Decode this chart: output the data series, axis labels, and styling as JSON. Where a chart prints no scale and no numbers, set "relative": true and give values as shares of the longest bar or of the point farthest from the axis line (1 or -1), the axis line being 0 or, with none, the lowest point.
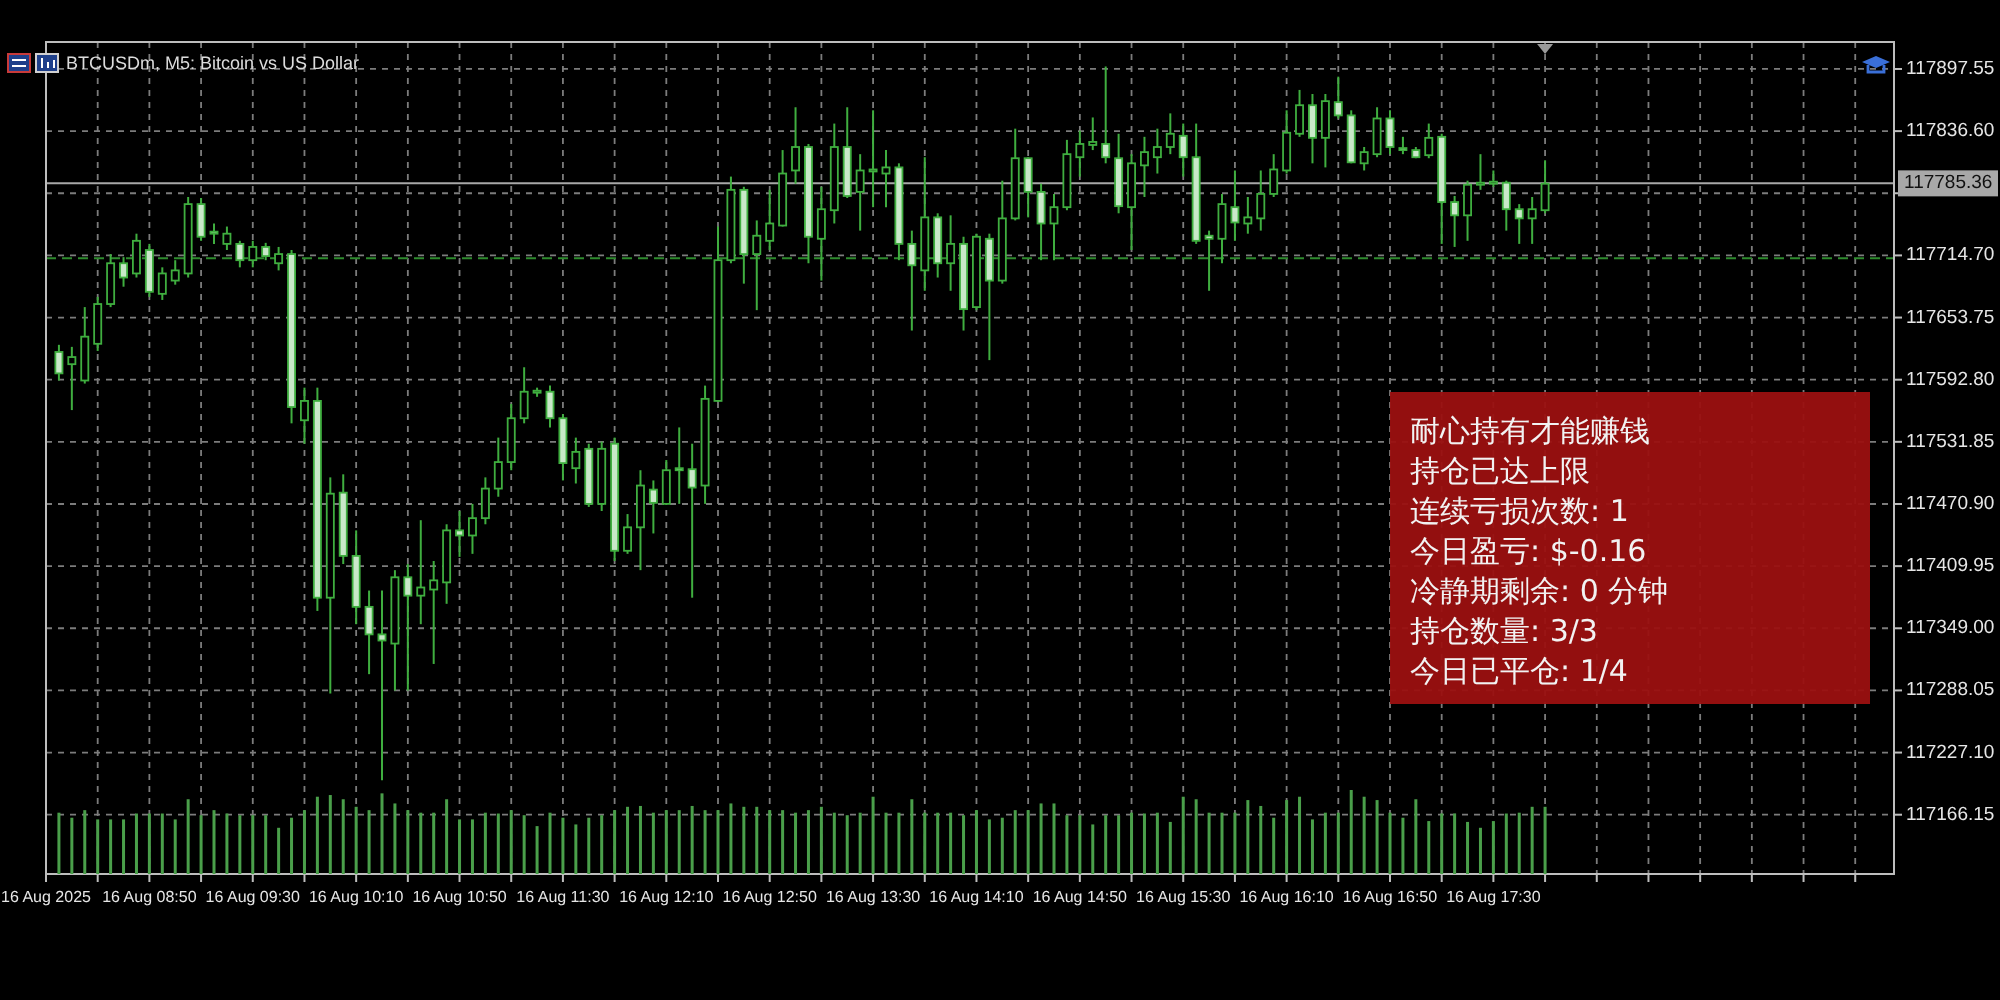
{
  "chart_data": [
    {
      "type": "candlestick",
      "title": "BTCUSDm, M5: Bitcoin vs US Dollar",
      "color": "#3fae3f",
      "x": [
        "2025-08-16T08:15",
        "2025-08-16T08:20",
        "2025-08-16T08:25",
        "2025-08-16T08:30",
        "2025-08-16T08:35",
        "2025-08-16T08:40",
        "2025-08-16T08:45",
        "2025-08-16T08:50",
        "2025-08-16T08:55",
        "2025-08-16T09:00",
        "2025-08-16T09:05",
        "2025-08-16T09:10",
        "2025-08-16T09:15",
        "2025-08-16T09:20",
        "2025-08-16T09:25",
        "2025-08-16T09:30",
        "2025-08-16T09:35",
        "2025-08-16T09:40",
        "2025-08-16T09:45",
        "2025-08-16T09:50",
        "2025-08-16T09:55",
        "2025-08-16T10:00",
        "2025-08-16T10:05",
        "2025-08-16T10:10",
        "2025-08-16T10:15",
        "2025-08-16T10:20",
        "2025-08-16T10:25",
        "2025-08-16T10:30",
        "2025-08-16T10:35",
        "2025-08-16T10:40",
        "2025-08-16T10:45",
        "2025-08-16T10:50",
        "2025-08-16T10:55",
        "2025-08-16T11:00",
        "2025-08-16T11:05",
        "2025-08-16T11:10",
        "2025-08-16T11:15",
        "2025-08-16T11:20",
        "2025-08-16T11:25",
        "2025-08-16T11:30",
        "2025-08-16T11:35",
        "2025-08-16T11:40",
        "2025-08-16T11:45",
        "2025-08-16T11:50",
        "2025-08-16T11:55",
        "2025-08-16T12:00",
        "2025-08-16T12:05",
        "2025-08-16T12:10",
        "2025-08-16T12:15",
        "2025-08-16T12:20",
        "2025-08-16T12:25",
        "2025-08-16T12:30",
        "2025-08-16T12:35",
        "2025-08-16T12:40",
        "2025-08-16T12:45",
        "2025-08-16T12:50",
        "2025-08-16T12:55",
        "2025-08-16T13:00",
        "2025-08-16T13:05",
        "2025-08-16T13:10",
        "2025-08-16T13:15",
        "2025-08-16T13:20",
        "2025-08-16T13:25",
        "2025-08-16T13:30",
        "2025-08-16T13:35",
        "2025-08-16T13:40",
        "2025-08-16T13:45",
        "2025-08-16T13:50",
        "2025-08-16T13:55",
        "2025-08-16T14:00",
        "2025-08-16T14:05",
        "2025-08-16T14:10",
        "2025-08-16T14:15",
        "2025-08-16T14:20",
        "2025-08-16T14:25",
        "2025-08-16T14:30",
        "2025-08-16T14:35",
        "2025-08-16T14:40",
        "2025-08-16T14:45",
        "2025-08-16T14:50",
        "2025-08-16T14:55",
        "2025-08-16T15:00",
        "2025-08-16T15:05",
        "2025-08-16T15:10",
        "2025-08-16T15:15",
        "2025-08-16T15:20",
        "2025-08-16T15:25",
        "2025-08-16T15:30",
        "2025-08-16T15:35",
        "2025-08-16T15:40",
        "2025-08-16T15:45",
        "2025-08-16T15:50",
        "2025-08-16T15:55",
        "2025-08-16T16:00",
        "2025-08-16T16:05",
        "2025-08-16T16:10",
        "2025-08-16T16:15",
        "2025-08-16T16:20",
        "2025-08-16T16:25",
        "2025-08-16T16:30",
        "2025-08-16T16:35",
        "2025-08-16T16:40",
        "2025-08-16T16:45",
        "2025-08-16T16:50",
        "2025-08-16T16:55",
        "2025-08-16T17:00",
        "2025-08-16T17:05",
        "2025-08-16T17:10",
        "2025-08-16T17:15",
        "2025-08-16T17:20",
        "2025-08-16T17:25",
        "2025-08-16T17:30",
        "2025-08-16T17:35",
        "2025-08-16T17:40",
        "2025-08-16T17:45",
        "2025-08-16T17:50"
      ],
      "ohlc": [
        [
          117620,
          117627,
          117592,
          117599
        ],
        [
          117608,
          117625,
          117563,
          117615
        ],
        [
          117592,
          117664,
          117589,
          117635
        ],
        [
          117628,
          117674,
          117621,
          117667
        ],
        [
          117667,
          117716,
          117664,
          117707
        ],
        [
          117707,
          117713,
          117684,
          117693
        ],
        [
          117697,
          117736,
          117693,
          117729
        ],
        [
          117720,
          117726,
          117674,
          117679
        ],
        [
          117677,
          117703,
          117671,
          117697
        ],
        [
          117690,
          117710,
          117686,
          117700
        ],
        [
          117697,
          117772,
          117693,
          117765
        ],
        [
          117765,
          117771,
          117729,
          117733
        ],
        [
          117738,
          117746,
          117726,
          117736
        ],
        [
          117726,
          117743,
          117720,
          117736
        ],
        [
          117726,
          117729,
          117703,
          117710
        ],
        [
          117710,
          117729,
          117703,
          117723
        ],
        [
          117723,
          117727,
          117710,
          117714
        ],
        [
          117707,
          117723,
          117700,
          117716
        ],
        [
          117716,
          117720,
          117550,
          117566
        ],
        [
          117553,
          117585,
          117530,
          117572
        ],
        [
          117572,
          117585,
          117366,
          117379
        ],
        [
          117379,
          117497,
          117285,
          117481
        ],
        [
          117482,
          117500,
          117412,
          117420
        ],
        [
          117420,
          117445,
          117353,
          117370
        ],
        [
          117370,
          117386,
          117304,
          117343
        ],
        [
          117343,
          117386,
          117200,
          117337
        ],
        [
          117334,
          117406,
          117288,
          117399
        ],
        [
          117399,
          117412,
          117288,
          117381
        ],
        [
          117381,
          117455,
          117353,
          117389
        ],
        [
          117387,
          117415,
          117314,
          117396
        ],
        [
          117394,
          117451,
          117373,
          117445
        ],
        [
          117445,
          117464,
          117419,
          117440
        ],
        [
          117440,
          117471,
          117422,
          117457
        ],
        [
          117457,
          117497,
          117451,
          117486
        ],
        [
          117486,
          117536,
          117478,
          117512
        ],
        [
          117512,
          117569,
          117504,
          117555
        ],
        [
          117555,
          117605,
          117550,
          117581
        ],
        [
          117581,
          117585,
          117576,
          117582
        ],
        [
          117581,
          117587,
          117546,
          117555
        ],
        [
          117555,
          117559,
          117494,
          117511
        ],
        [
          117506,
          117536,
          117491,
          117522
        ],
        [
          117525,
          117530,
          117468,
          117471
        ],
        [
          117471,
          117532,
          117464,
          117525
        ],
        [
          117530,
          117536,
          117415,
          117425
        ],
        [
          117425,
          117461,
          117422,
          117448
        ],
        [
          117448,
          117504,
          117406,
          117489
        ],
        [
          117485,
          117494,
          117442,
          117472
        ],
        [
          117471,
          117514,
          117470,
          117504
        ],
        [
          117506,
          117546,
          117471,
          117504
        ],
        [
          117505,
          117530,
          117379,
          117487
        ],
        [
          117489,
          117587,
          117471,
          117574
        ],
        [
          117572,
          117743,
          117571,
          117710
        ],
        [
          117710,
          117792,
          117707,
          117779
        ],
        [
          117779,
          117782,
          117687,
          117716
        ],
        [
          117716,
          117749,
          117661,
          117734
        ],
        [
          117729,
          117779,
          117720,
          117746
        ],
        [
          117744,
          117818,
          117743,
          117795
        ],
        [
          117798,
          117860,
          117785,
          117821
        ],
        [
          117821,
          117824,
          117707,
          117733
        ],
        [
          117731,
          117782,
          117690,
          117760
        ],
        [
          117759,
          117844,
          117746,
          117821
        ],
        [
          117821,
          117860,
          117771,
          117773
        ],
        [
          117777,
          117814,
          117739,
          117798
        ],
        [
          117798,
          117857,
          117762,
          117799
        ],
        [
          117795,
          117818,
          117762,
          117801
        ],
        [
          117801,
          117805,
          117710,
          117726
        ],
        [
          117726,
          117739,
          117641,
          117705
        ],
        [
          117700,
          117811,
          117680,
          117752
        ],
        [
          117752,
          117756,
          117693,
          117707
        ],
        [
          117707,
          117754,
          117680,
          117726
        ],
        [
          117726,
          117733,
          117641,
          117662
        ],
        [
          117664,
          117736,
          117661,
          117733
        ],
        [
          117731,
          117736,
          117612,
          117690
        ],
        [
          117690,
          117788,
          117687,
          117751
        ],
        [
          117751,
          117839,
          117749,
          117810
        ],
        [
          117810,
          117811,
          117752,
          117777
        ],
        [
          117777,
          117785,
          117710,
          117746
        ],
        [
          117746,
          117775,
          117710,
          117762
        ],
        [
          117762,
          117828,
          117759,
          117814
        ],
        [
          117811,
          117837,
          117792,
          117824
        ],
        [
          117823,
          117850,
          117818,
          117826
        ],
        [
          117824,
          117900,
          117805,
          117811
        ],
        [
          117810,
          117834,
          117756,
          117763
        ],
        [
          117762,
          117814,
          117720,
          117805
        ],
        [
          117803,
          117831,
          117772,
          117816
        ],
        [
          117811,
          117839,
          117795,
          117821
        ],
        [
          117821,
          117854,
          117814,
          117834
        ],
        [
          117832,
          117844,
          117792,
          117811
        ],
        [
          117811,
          117844,
          117726,
          117729
        ],
        [
          117734,
          117739,
          117680,
          117731
        ],
        [
          117731,
          117775,
          117707,
          117765
        ],
        [
          117762,
          117798,
          117729,
          117747
        ],
        [
          117746,
          117772,
          117736,
          117752
        ],
        [
          117751,
          117798,
          117739,
          117775
        ],
        [
          117775,
          117814,
          117772,
          117799
        ],
        [
          117798,
          117857,
          117795,
          117835
        ],
        [
          117834,
          117877,
          117831,
          117862
        ],
        [
          117862,
          117873,
          117805,
          117830
        ],
        [
          117830,
          117873,
          117801,
          117866
        ],
        [
          117865,
          117890,
          117849,
          117852
        ],
        [
          117852,
          117857,
          117805,
          117806
        ],
        [
          117805,
          117821,
          117798,
          117816
        ],
        [
          117814,
          117860,
          117811,
          117849
        ],
        [
          117849,
          117857,
          117814,
          117821
        ],
        [
          117820,
          117831,
          117814,
          117818
        ],
        [
          117818,
          117821,
          117810,
          117811
        ],
        [
          117813,
          117844,
          117810,
          117830
        ],
        [
          117831,
          117834,
          117726,
          117767
        ],
        [
          117767,
          117773,
          117723,
          117754
        ],
        [
          117754,
          117788,
          117729,
          117784
        ],
        [
          117784,
          117814,
          117779,
          117786
        ],
        [
          117786,
          117798,
          117782,
          117787
        ],
        [
          117786,
          117788,
          117739,
          117760
        ],
        [
          117760,
          117765,
          117726,
          117751
        ],
        [
          117751,
          117772,
          117726,
          117760
        ],
        [
          117759,
          117808,
          117756,
          117785
        ]
      ],
      "xlim": [
        "2025-08-16T08:10",
        "2025-08-16T20:05"
      ],
      "xticks": [
        {
          "value": "2025-08-16T08:10",
          "label": "16 Aug 2025"
        },
        {
          "value": "2025-08-16T08:30",
          "label": null
        },
        {
          "value": "2025-08-16T08:50",
          "label": "16 Aug 08:50"
        },
        {
          "value": "2025-08-16T09:10",
          "label": null
        },
        {
          "value": "2025-08-16T09:30",
          "label": "16 Aug 09:30"
        },
        {
          "value": "2025-08-16T09:50",
          "label": null
        },
        {
          "value": "2025-08-16T10:10",
          "label": "16 Aug 10:10"
        },
        {
          "value": "2025-08-16T10:30",
          "label": null
        },
        {
          "value": "2025-08-16T10:50",
          "label": "16 Aug 10:50"
        },
        {
          "value": "2025-08-16T11:10",
          "label": null
        },
        {
          "value": "2025-08-16T11:30",
          "label": "16 Aug 11:30"
        },
        {
          "value": "2025-08-16T11:50",
          "label": null
        },
        {
          "value": "2025-08-16T12:10",
          "label": "16 Aug 12:10"
        },
        {
          "value": "2025-08-16T12:30",
          "label": null
        },
        {
          "value": "2025-08-16T12:50",
          "label": "16 Aug 12:50"
        },
        {
          "value": "2025-08-16T13:10",
          "label": null
        },
        {
          "value": "2025-08-16T13:30",
          "label": "16 Aug 13:30"
        },
        {
          "value": "2025-08-16T13:50",
          "label": null
        },
        {
          "value": "2025-08-16T14:10",
          "label": "16 Aug 14:10"
        },
        {
          "value": "2025-08-16T14:30",
          "label": null
        },
        {
          "value": "2025-08-16T14:50",
          "label": "16 Aug 14:50"
        },
        {
          "value": "2025-08-16T15:10",
          "label": null
        },
        {
          "value": "2025-08-16T15:30",
          "label": "16 Aug 15:30"
        },
        {
          "value": "2025-08-16T15:50",
          "label": null
        },
        {
          "value": "2025-08-16T16:10",
          "label": "16 Aug 16:10"
        },
        {
          "value": "2025-08-16T16:30",
          "label": null
        },
        {
          "value": "2025-08-16T16:50",
          "label": "16 Aug 16:50"
        },
        {
          "value": "2025-08-16T17:10",
          "label": null
        },
        {
          "value": "2025-08-16T17:30",
          "label": "16 Aug 17:30"
        },
        {
          "value": "2025-08-16T17:50",
          "label": null
        },
        {
          "value": "2025-08-16T18:10",
          "label": null
        },
        {
          "value": "2025-08-16T18:30",
          "label": null
        },
        {
          "value": "2025-08-16T18:50",
          "label": null
        },
        {
          "value": "2025-08-16T19:10",
          "label": null
        },
        {
          "value": "2025-08-16T19:30",
          "label": null
        },
        {
          "value": "2025-08-16T19:50",
          "label": null
        }
      ],
      "ylim": [
        117108,
        117924
      ],
      "yticks": [
        117897.55,
        {
          "value": 117836.6,
          "label": "117836.60"
        },
        {
          "value": 117775.65,
          "label": null
        },
        {
          "value": 117714.7,
          "label": "117714.70"
        },
        117653.75,
        {
          "value": 117592.8,
          "label": "117592.80"
        },
        117531.85,
        {
          "value": 117470.9,
          "label": "117470.90"
        },
        117409.95,
        {
          "value": 117349,
          "label": "117349.00"
        },
        117288.05,
        {
          "value": 117227.1,
          "label": "117227.10"
        },
        117166.15
      ],
      "grid": true,
      "ref_lines": [
        {
          "axis": "y",
          "value": 117785.36,
          "label": "117785.36",
          "color": "#a8a8a8"
        },
        {
          "axis": "y",
          "value": 117712,
          "color": "#2e8b2e",
          "line_style": "dashed"
        }
      ],
      "annotations": [
        "耐心持有才能赚钱",
        "持仓已达上限",
        "连续亏损次数: 1",
        "今日盈亏: $-0.16",
        "冷静期剩余: 0 分钟",
        "持仓数量: 3/3",
        "今日已平仓: 1/4"
      ]
    },
    {
      "type": "bar",
      "relative": true,
      "tick_labels": false,
      "color": "#4a9f4a",
      "x": [
        "2025-08-16T08:15",
        "2025-08-16T08:20",
        "2025-08-16T08:25",
        "2025-08-16T08:30",
        "2025-08-16T08:35",
        "2025-08-16T08:40",
        "2025-08-16T08:45",
        "2025-08-16T08:50",
        "2025-08-16T08:55",
        "2025-08-16T09:00",
        "2025-08-16T09:05",
        "2025-08-16T09:10",
        "2025-08-16T09:15",
        "2025-08-16T09:20",
        "2025-08-16T09:25",
        "2025-08-16T09:30",
        "2025-08-16T09:35",
        "2025-08-16T09:40",
        "2025-08-16T09:45",
        "2025-08-16T09:50",
        "2025-08-16T09:55",
        "2025-08-16T10:00",
        "2025-08-16T10:05",
        "2025-08-16T10:10",
        "2025-08-16T10:15",
        "2025-08-16T10:20",
        "2025-08-16T10:25",
        "2025-08-16T10:30",
        "2025-08-16T10:35",
        "2025-08-16T10:40",
        "2025-08-16T10:45",
        "2025-08-16T10:50",
        "2025-08-16T10:55",
        "2025-08-16T11:00",
        "2025-08-16T11:05",
        "2025-08-16T11:10",
        "2025-08-16T11:15",
        "2025-08-16T11:20",
        "2025-08-16T11:25",
        "2025-08-16T11:30",
        "2025-08-16T11:35",
        "2025-08-16T11:40",
        "2025-08-16T11:45",
        "2025-08-16T11:50",
        "2025-08-16T11:55",
        "2025-08-16T12:00",
        "2025-08-16T12:05",
        "2025-08-16T12:10",
        "2025-08-16T12:15",
        "2025-08-16T12:20",
        "2025-08-16T12:25",
        "2025-08-16T12:30",
        "2025-08-16T12:35",
        "2025-08-16T12:40",
        "2025-08-16T12:45",
        "2025-08-16T12:50",
        "2025-08-16T12:55",
        "2025-08-16T13:00",
        "2025-08-16T13:05",
        "2025-08-16T13:10",
        "2025-08-16T13:15",
        "2025-08-16T13:20",
        "2025-08-16T13:25",
        "2025-08-16T13:30",
        "2025-08-16T13:35",
        "2025-08-16T13:40",
        "2025-08-16T13:45",
        "2025-08-16T13:50",
        "2025-08-16T13:55",
        "2025-08-16T14:00",
        "2025-08-16T14:05",
        "2025-08-16T14:10",
        "2025-08-16T14:15",
        "2025-08-16T14:20",
        "2025-08-16T14:25",
        "2025-08-16T14:30",
        "2025-08-16T14:35",
        "2025-08-16T14:40",
        "2025-08-16T14:45",
        "2025-08-16T14:50",
        "2025-08-16T14:55",
        "2025-08-16T15:00",
        "2025-08-16T15:05",
        "2025-08-16T15:10",
        "2025-08-16T15:15",
        "2025-08-16T15:20",
        "2025-08-16T15:25",
        "2025-08-16T15:30",
        "2025-08-16T15:35",
        "2025-08-16T15:40",
        "2025-08-16T15:45",
        "2025-08-16T15:50",
        "2025-08-16T15:55",
        "2025-08-16T16:00",
        "2025-08-16T16:05",
        "2025-08-16T16:10",
        "2025-08-16T16:15",
        "2025-08-16T16:20",
        "2025-08-16T16:25",
        "2025-08-16T16:30",
        "2025-08-16T16:35",
        "2025-08-16T16:40",
        "2025-08-16T16:45",
        "2025-08-16T16:50",
        "2025-08-16T16:55",
        "2025-08-16T17:00",
        "2025-08-16T17:05",
        "2025-08-16T17:10",
        "2025-08-16T17:15",
        "2025-08-16T17:20",
        "2025-08-16T17:25",
        "2025-08-16T17:30",
        "2025-08-16T17:35",
        "2025-08-16T17:40",
        "2025-08-16T17:45",
        "2025-08-16T17:50"
      ],
      "values": [
        0.73,
        0.67,
        0.76,
        0.65,
        0.65,
        0.65,
        0.72,
        0.72,
        0.72,
        0.65,
        0.89,
        0.7,
        0.76,
        0.72,
        0.7,
        0.7,
        0.7,
        0.55,
        0.67,
        0.76,
        0.92,
        0.94,
        0.89,
        0.8,
        0.76,
        0.96,
        0.84,
        0.76,
        0.73,
        0.73,
        0.89,
        0.65,
        0.65,
        0.73,
        0.72,
        0.76,
        0.7,
        0.57,
        0.73,
        0.67,
        0.59,
        0.67,
        0.7,
        0.76,
        0.8,
        0.81,
        0.73,
        0.76,
        0.76,
        0.81,
        0.76,
        0.76,
        0.84,
        0.8,
        0.8,
        0.76,
        0.76,
        0.73,
        0.76,
        0.8,
        0.73,
        0.7,
        0.73,
        0.92,
        0.73,
        0.73,
        0.89,
        0.73,
        0.73,
        0.73,
        0.7,
        0.76,
        0.65,
        0.67,
        0.76,
        0.76,
        0.84,
        0.84,
        0.7,
        0.7,
        0.59,
        0.7,
        0.7,
        0.73,
        0.72,
        0.73,
        0.62,
        0.92,
        0.89,
        0.73,
        0.73,
        0.73,
        0.88,
        0.81,
        0.67,
        0.88,
        0.92,
        0.65,
        0.73,
        0.73,
        1,
        0.92,
        0.88,
        0.73,
        0.67,
        0.89,
        0.63,
        0.72,
        0.72,
        0.62,
        0.55,
        0.63,
        0.72,
        0.73,
        0.8,
        0.8
      ],
      "xlim": [
        "2025-08-16T08:10",
        "2025-08-16T20:05"
      ]
    }
  ]
}
